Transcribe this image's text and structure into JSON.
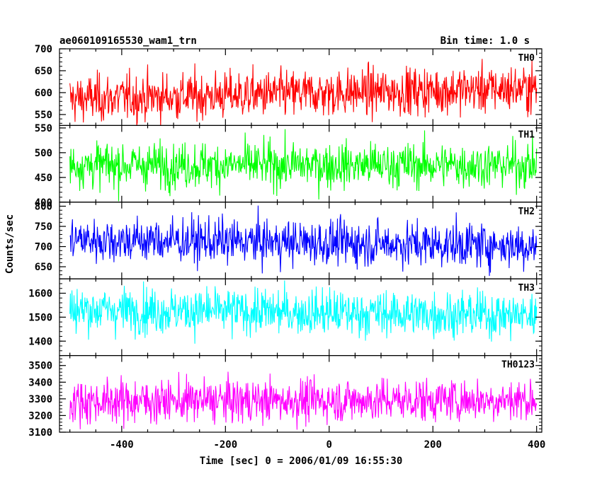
{
  "header": {
    "title": "ae060109165530_wam1_trn",
    "bin_time": "Bin time: 1.0 s"
  },
  "chart_data": {
    "type": "line",
    "title": "ae060109165530_wam1_trn",
    "xlabel": "Time [sec] 0 = 2006/01/09 16:55:30",
    "ylabel": "Counts/sec",
    "xlim": [
      -520,
      410
    ],
    "x_range": [
      -500,
      400
    ],
    "x_step": 1.0,
    "x_ticks": [
      -400,
      -200,
      0,
      200,
      400
    ],
    "grid": false,
    "panels": [
      {
        "name": "TH0",
        "color": "#ff0000",
        "ylim": [
          525,
          700
        ],
        "y_ticks": [
          550,
          600,
          650,
          700
        ],
        "mean": 598,
        "trend": 25,
        "noise": 27
      },
      {
        "name": "TH1",
        "color": "#00ff00",
        "ylim": [
          400,
          555
        ],
        "y_ticks": [
          400,
          450,
          500,
          550
        ],
        "mean": 475,
        "trend": 0,
        "noise": 23
      },
      {
        "name": "TH2",
        "color": "#0000ff",
        "ylim": [
          620,
          810
        ],
        "y_ticks": [
          650,
          700,
          750,
          800
        ],
        "mean": 710,
        "trend": -15,
        "noise": 28
      },
      {
        "name": "TH3",
        "color": "#00ffff",
        "ylim": [
          1340,
          1660
        ],
        "y_ticks": [
          1400,
          1500,
          1600
        ],
        "mean": 1520,
        "trend": -25,
        "noise": 48
      },
      {
        "name": "TH0123",
        "color": "#ff00ff",
        "ylim": [
          3100,
          3560
        ],
        "y_ticks": [
          3100,
          3200,
          3300,
          3400,
          3500
        ],
        "mean": 3290,
        "trend": 10,
        "noise": 65
      }
    ]
  }
}
